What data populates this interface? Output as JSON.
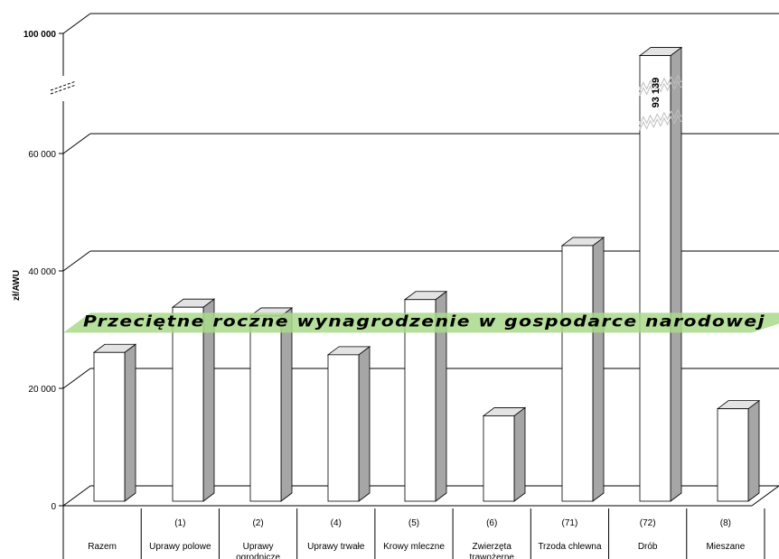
{
  "chart_data": {
    "type": "bar",
    "ylabel": "zł/AWU",
    "ylim": [
      0,
      100000
    ],
    "axis_break": {
      "from": 70000,
      "to": 100000,
      "shown_as": "broken-axis"
    },
    "yticks": [
      {
        "value": 0,
        "label": "0"
      },
      {
        "value": 20000,
        "label": "20 000"
      },
      {
        "value": 40000,
        "label": "40 000"
      },
      {
        "value": 60000,
        "label": "60 000"
      },
      {
        "value": 100000,
        "label": "100 000"
      }
    ],
    "grid": true,
    "categories": [
      {
        "code": "",
        "name": "Razem"
      },
      {
        "code": "(1)",
        "name": "Uprawy polowe"
      },
      {
        "code": "(2)",
        "name": "Uprawy ogrodnicze"
      },
      {
        "code": "(4)",
        "name": "Uprawy trwałe"
      },
      {
        "code": "(5)",
        "name": "Krowy mleczne"
      },
      {
        "code": "(6)",
        "name": "Zwierzęta trawożerne"
      },
      {
        "code": "(71)",
        "name": "Trzoda chlewna"
      },
      {
        "code": "(72)",
        "name": "Drób"
      },
      {
        "code": "(8)",
        "name": "Mieszane"
      }
    ],
    "values": [
      27500,
      35200,
      33700,
      27100,
      36500,
      16700,
      45700,
      93139,
      17900
    ],
    "data_labels": [
      {
        "index": 7,
        "text": "93 139"
      }
    ],
    "reference_band": {
      "label": "Przeciętne roczne wynagrodzenie w gospodarce narodowej",
      "value": 30400,
      "color": "#a8d98a"
    },
    "colors": {
      "bar_front": "#ffffff",
      "bar_side": "#a6a6a6",
      "bar_top": "#e3e3e3",
      "grid": "#000000"
    }
  }
}
